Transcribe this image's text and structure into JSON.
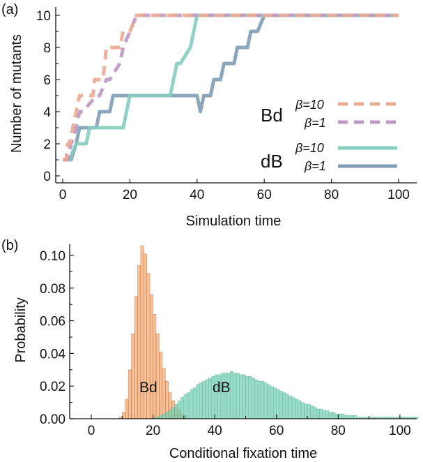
{
  "panels": {
    "a_label": "(a)",
    "b_label": "(b)"
  },
  "colors": {
    "Bd_b10": "#ebaa94",
    "Bd_b1": "#bd98c2",
    "dB_b10": "#86cdc0",
    "dB_b1": "#7f9db5",
    "Bd_hist": "#f8a66a",
    "dB_hist": "#6fd0b2"
  },
  "chart_data": [
    {
      "type": "line",
      "panel": "(a)",
      "xlabel": "Simulation time",
      "ylabel": "Number of mutants",
      "xlim": [
        0,
        100
      ],
      "ylim": [
        0,
        10
      ],
      "xticks": [
        "0",
        "20",
        "40",
        "60",
        "80",
        "100"
      ],
      "yticks": [
        "0",
        "2",
        "4",
        "6",
        "8",
        "10"
      ],
      "legend": {
        "groups": [
          {
            "label": "Bd",
            "entries": [
              {
                "beta": "β=10",
                "series": "Bd_b10"
              },
              {
                "beta": "β=1",
                "series": "Bd_b1"
              }
            ]
          },
          {
            "label": "dB",
            "entries": [
              {
                "beta": "β=10",
                "series": "dB_b10"
              },
              {
                "beta": "β=1",
                "series": "dB_b1"
              }
            ]
          }
        ]
      },
      "series": [
        {
          "id": "Bd_b10",
          "style": "dashed",
          "x": [
            0,
            1,
            1.5,
            2,
            3,
            4,
            5,
            9,
            9.5,
            12,
            13,
            17,
            18,
            20,
            22,
            100
          ],
          "y": [
            1,
            1,
            2,
            2,
            3,
            4,
            5,
            5,
            6,
            6,
            8,
            8,
            9,
            9,
            10,
            10
          ]
        },
        {
          "id": "Bd_b1",
          "style": "dashed",
          "x": [
            0,
            1.5,
            2.5,
            4,
            5,
            6,
            10,
            11,
            13,
            14,
            17,
            18,
            22,
            100
          ],
          "y": [
            1,
            1,
            2,
            3,
            4,
            4,
            5,
            5,
            6,
            6,
            7,
            8,
            10,
            10
          ]
        },
        {
          "id": "dB_b10",
          "style": "solid",
          "x": [
            0,
            2,
            4,
            7,
            8,
            12,
            13,
            18,
            20,
            32,
            34,
            35,
            38,
            40,
            41,
            100
          ],
          "y": [
            1,
            1,
            2,
            2,
            3,
            3,
            3,
            3,
            5,
            5,
            7,
            7,
            8,
            10,
            10,
            10
          ]
        },
        {
          "id": "dB_b1",
          "style": "solid",
          "x": [
            0,
            2.5,
            4,
            5,
            8,
            10,
            11,
            14,
            15,
            40,
            41,
            42,
            44,
            45,
            47,
            48,
            51,
            52,
            55,
            56,
            58,
            60,
            100
          ],
          "y": [
            1,
            1,
            2,
            3,
            3,
            3,
            4,
            4,
            5,
            5,
            4,
            5,
            5,
            6,
            6,
            7,
            7,
            8,
            8,
            9,
            9,
            10,
            10
          ]
        }
      ]
    },
    {
      "type": "bar",
      "panel": "(b)",
      "xlabel": "Conditional fixation time",
      "ylabel": "Probability",
      "xlim": [
        -7,
        105
      ],
      "ylim": [
        0,
        0.106
      ],
      "xticks": [
        "0",
        "20",
        "40",
        "60",
        "80",
        "100"
      ],
      "yticks": [
        "0.00",
        "0.02",
        "0.04",
        "0.06",
        "0.08",
        "0.10"
      ],
      "bin_width": 1,
      "series": [
        {
          "id": "Bd_hist",
          "name": "Bd",
          "x_start": 9,
          "values": [
            0.001,
            0.004,
            0.012,
            0.03,
            0.052,
            0.075,
            0.094,
            0.106,
            0.101,
            0.089,
            0.076,
            0.064,
            0.052,
            0.041,
            0.031,
            0.023,
            0.016,
            0.011,
            0.007,
            0.005,
            0.003,
            0.002
          ]
        },
        {
          "id": "dB_hist",
          "name": "dB",
          "x_start": 20,
          "values": [
            0.001,
            0.001,
            0.002,
            0.003,
            0.004,
            0.005,
            0.007,
            0.009,
            0.011,
            0.013,
            0.015,
            0.016,
            0.018,
            0.019,
            0.021,
            0.022,
            0.023,
            0.024,
            0.025,
            0.026,
            0.027,
            0.027,
            0.028,
            0.028,
            0.028,
            0.029,
            0.028,
            0.028,
            0.027,
            0.027,
            0.026,
            0.026,
            0.025,
            0.024,
            0.023,
            0.023,
            0.022,
            0.021,
            0.02,
            0.019,
            0.018,
            0.017,
            0.016,
            0.015,
            0.014,
            0.013,
            0.012,
            0.011,
            0.01,
            0.009,
            0.009,
            0.008,
            0.007,
            0.006,
            0.006,
            0.005,
            0.005,
            0.004,
            0.004,
            0.003,
            0.003,
            0.003,
            0.002,
            0.002,
            0.002,
            0.002,
            0.001,
            0.001,
            0.001,
            0.001,
            0.001,
            0.001,
            0.001,
            0.001,
            0.001,
            0.001,
            0.001,
            0.001,
            0.001,
            0.001,
            0.001,
            0.001,
            0.001,
            0.001,
            0.001,
            0.001
          ]
        }
      ]
    }
  ]
}
